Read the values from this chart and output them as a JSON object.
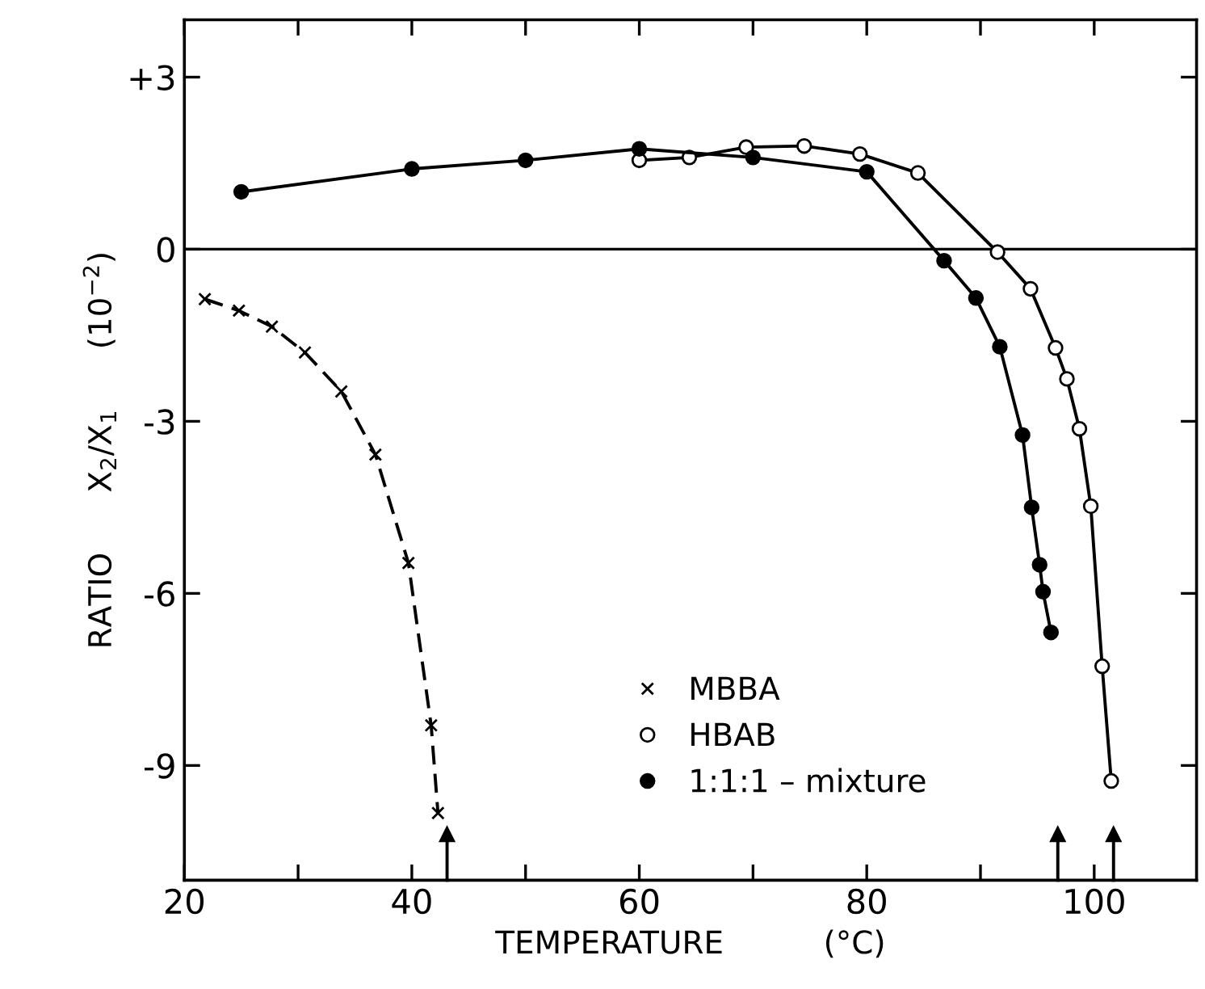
{
  "chart_data": {
    "type": "line",
    "xlabel": "TEMPERATURE          (°C)",
    "ylabel": "RATIO      X$_{2}$/X$_{1}$      (10$^{−2}$)",
    "xlim": [
      20,
      109
    ],
    "ylim": [
      -11,
      4
    ],
    "xticks": [
      20,
      {
        "value": 30,
        "label": null
      },
      40,
      {
        "value": 50,
        "label": null
      },
      60,
      {
        "value": 70,
        "label": null
      },
      80,
      {
        "value": 90,
        "label": null
      },
      100
    ],
    "yticks": [
      {
        "value": 3,
        "label": "+3"
      },
      0,
      -3,
      -6,
      -9
    ],
    "grid": false,
    "legend": "bottom",
    "series": [
      {
        "name": "MBBA",
        "color": "#000000",
        "marker": "cross",
        "line_style": "dashed",
        "x": [
          21.8,
          24.8,
          27.7,
          30.6,
          33.8,
          36.8,
          39.7,
          41.7,
          42.3
        ],
        "values": [
          -0.87,
          -1.07,
          -1.35,
          -1.8,
          -2.48,
          -3.58,
          -5.47,
          -8.3,
          -9.83
        ]
      },
      {
        "name": "HBAB",
        "color": "#000000",
        "marker": "circle",
        "line_style": "solid",
        "x": [
          60,
          64.4,
          69.4,
          74.5,
          79.4,
          84.5,
          91.5,
          94.4,
          96.6,
          97.6,
          98.7,
          99.7,
          100.7,
          101.5
        ],
        "values": [
          1.55,
          1.6,
          1.78,
          1.8,
          1.66,
          1.33,
          -0.05,
          -0.69,
          -1.72,
          -2.26,
          -3.13,
          -4.48,
          -7.27,
          -9.27
        ]
      },
      {
        "name": "1:1:1 – mixture",
        "color": "#000000",
        "marker": "circle",
        "line_style": "solid",
        "x": [
          25,
          40,
          50,
          60,
          70,
          80,
          86.8,
          89.6,
          91.7,
          93.7,
          94.5,
          95.2,
          95.5,
          96.2
        ],
        "values": [
          1.0,
          1.4,
          1.55,
          1.75,
          1.6,
          1.35,
          -0.2,
          -0.85,
          -1.7,
          -3.24,
          -4.5,
          -5.5,
          -5.97,
          -6.68
        ]
      },
      {
        "type": "scatter",
        "color": "#000000",
        "marker": "triangle",
        "x": [
          43.1,
          96.8,
          101.7
        ],
        "values": [
          -10.2,
          -10.2,
          -10.2
        ],
        "errors": [
          [
            -11,
            -10.2
          ],
          [
            -11,
            -10.2
          ],
          [
            -11,
            -10.2
          ]
        ]
      }
    ],
    "ref_lines": [
      {
        "axis": "y",
        "value": 0,
        "line_style": "solid"
      }
    ]
  }
}
